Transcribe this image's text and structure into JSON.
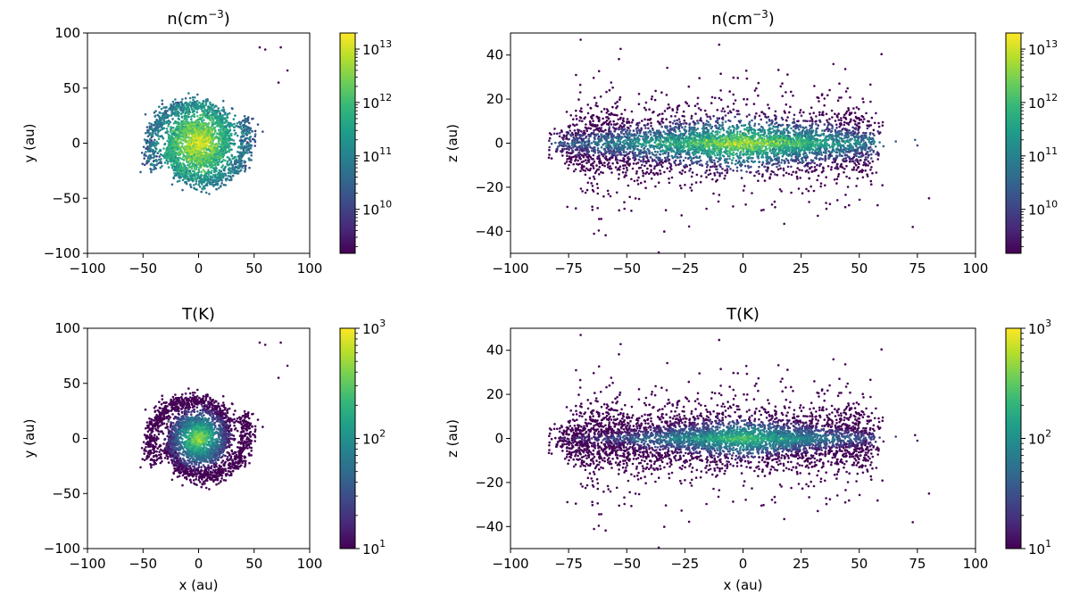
{
  "chart_data": [
    {
      "type": "scatter",
      "title": "n(cm^-3)",
      "title_base": "n(cm",
      "title_sup": "−3",
      "title_end": ")",
      "xlabel": "",
      "ylabel": "y (au)",
      "xlim": [
        -100,
        100
      ],
      "ylim": [
        -100,
        100
      ],
      "xticks": [
        -100,
        -50,
        0,
        50,
        100
      ],
      "yticks": [
        -100,
        -50,
        0,
        50,
        100
      ],
      "pattern": "spiral-face-on",
      "colormap": "viridis",
      "colorbar": {
        "scale": "log",
        "range": [
          1500000000.0,
          20000000000000.0
        ],
        "tick_exponents": [
          10,
          11,
          12,
          13
        ],
        "tick_base": "10"
      }
    },
    {
      "type": "scatter",
      "title": "n(cm^-3)",
      "title_base": "n(cm",
      "title_sup": "−3",
      "title_end": ")",
      "xlabel": "",
      "ylabel": "z (au)",
      "xlim": [
        -100,
        100
      ],
      "ylim": [
        -50,
        50
      ],
      "xticks": [
        -100,
        -75,
        -50,
        -25,
        0,
        25,
        50,
        75,
        100
      ],
      "yticks": [
        -40,
        -20,
        0,
        20,
        40
      ],
      "pattern": "disk-edge-on",
      "colormap": "viridis",
      "colorbar": {
        "scale": "log",
        "range": [
          1500000000.0,
          20000000000000.0
        ],
        "tick_exponents": [
          10,
          11,
          12,
          13
        ],
        "tick_base": "10"
      }
    },
    {
      "type": "scatter",
      "title": "T(K)",
      "xlabel": "x (au)",
      "ylabel": "y (au)",
      "xlim": [
        -100,
        100
      ],
      "ylim": [
        -100,
        100
      ],
      "xticks": [
        -100,
        -50,
        0,
        50,
        100
      ],
      "yticks": [
        -100,
        -50,
        0,
        50,
        100
      ],
      "pattern": "spiral-face-on",
      "colormap": "viridis",
      "colorbar": {
        "scale": "log",
        "range": [
          10,
          1000
        ],
        "tick_exponents": [
          1,
          2,
          3
        ],
        "tick_base": "10"
      }
    },
    {
      "type": "scatter",
      "title": "T(K)",
      "xlabel": "x (au)",
      "ylabel": "z (au)",
      "xlim": [
        -100,
        100
      ],
      "ylim": [
        -50,
        50
      ],
      "xticks": [
        -100,
        -75,
        -50,
        -25,
        0,
        25,
        50,
        75,
        100
      ],
      "yticks": [
        -40,
        -20,
        0,
        20,
        40
      ],
      "pattern": "disk-edge-on",
      "colormap": "viridis",
      "colorbar": {
        "scale": "log",
        "range": [
          10,
          1000
        ],
        "tick_exponents": [
          1,
          2,
          3
        ],
        "tick_base": "10"
      }
    }
  ],
  "colors": {
    "viridis": [
      "#440154",
      "#482878",
      "#3e4989",
      "#31688e",
      "#26828e",
      "#1f9e89",
      "#35b779",
      "#6ece58",
      "#b5de2b",
      "#fde725"
    ]
  }
}
